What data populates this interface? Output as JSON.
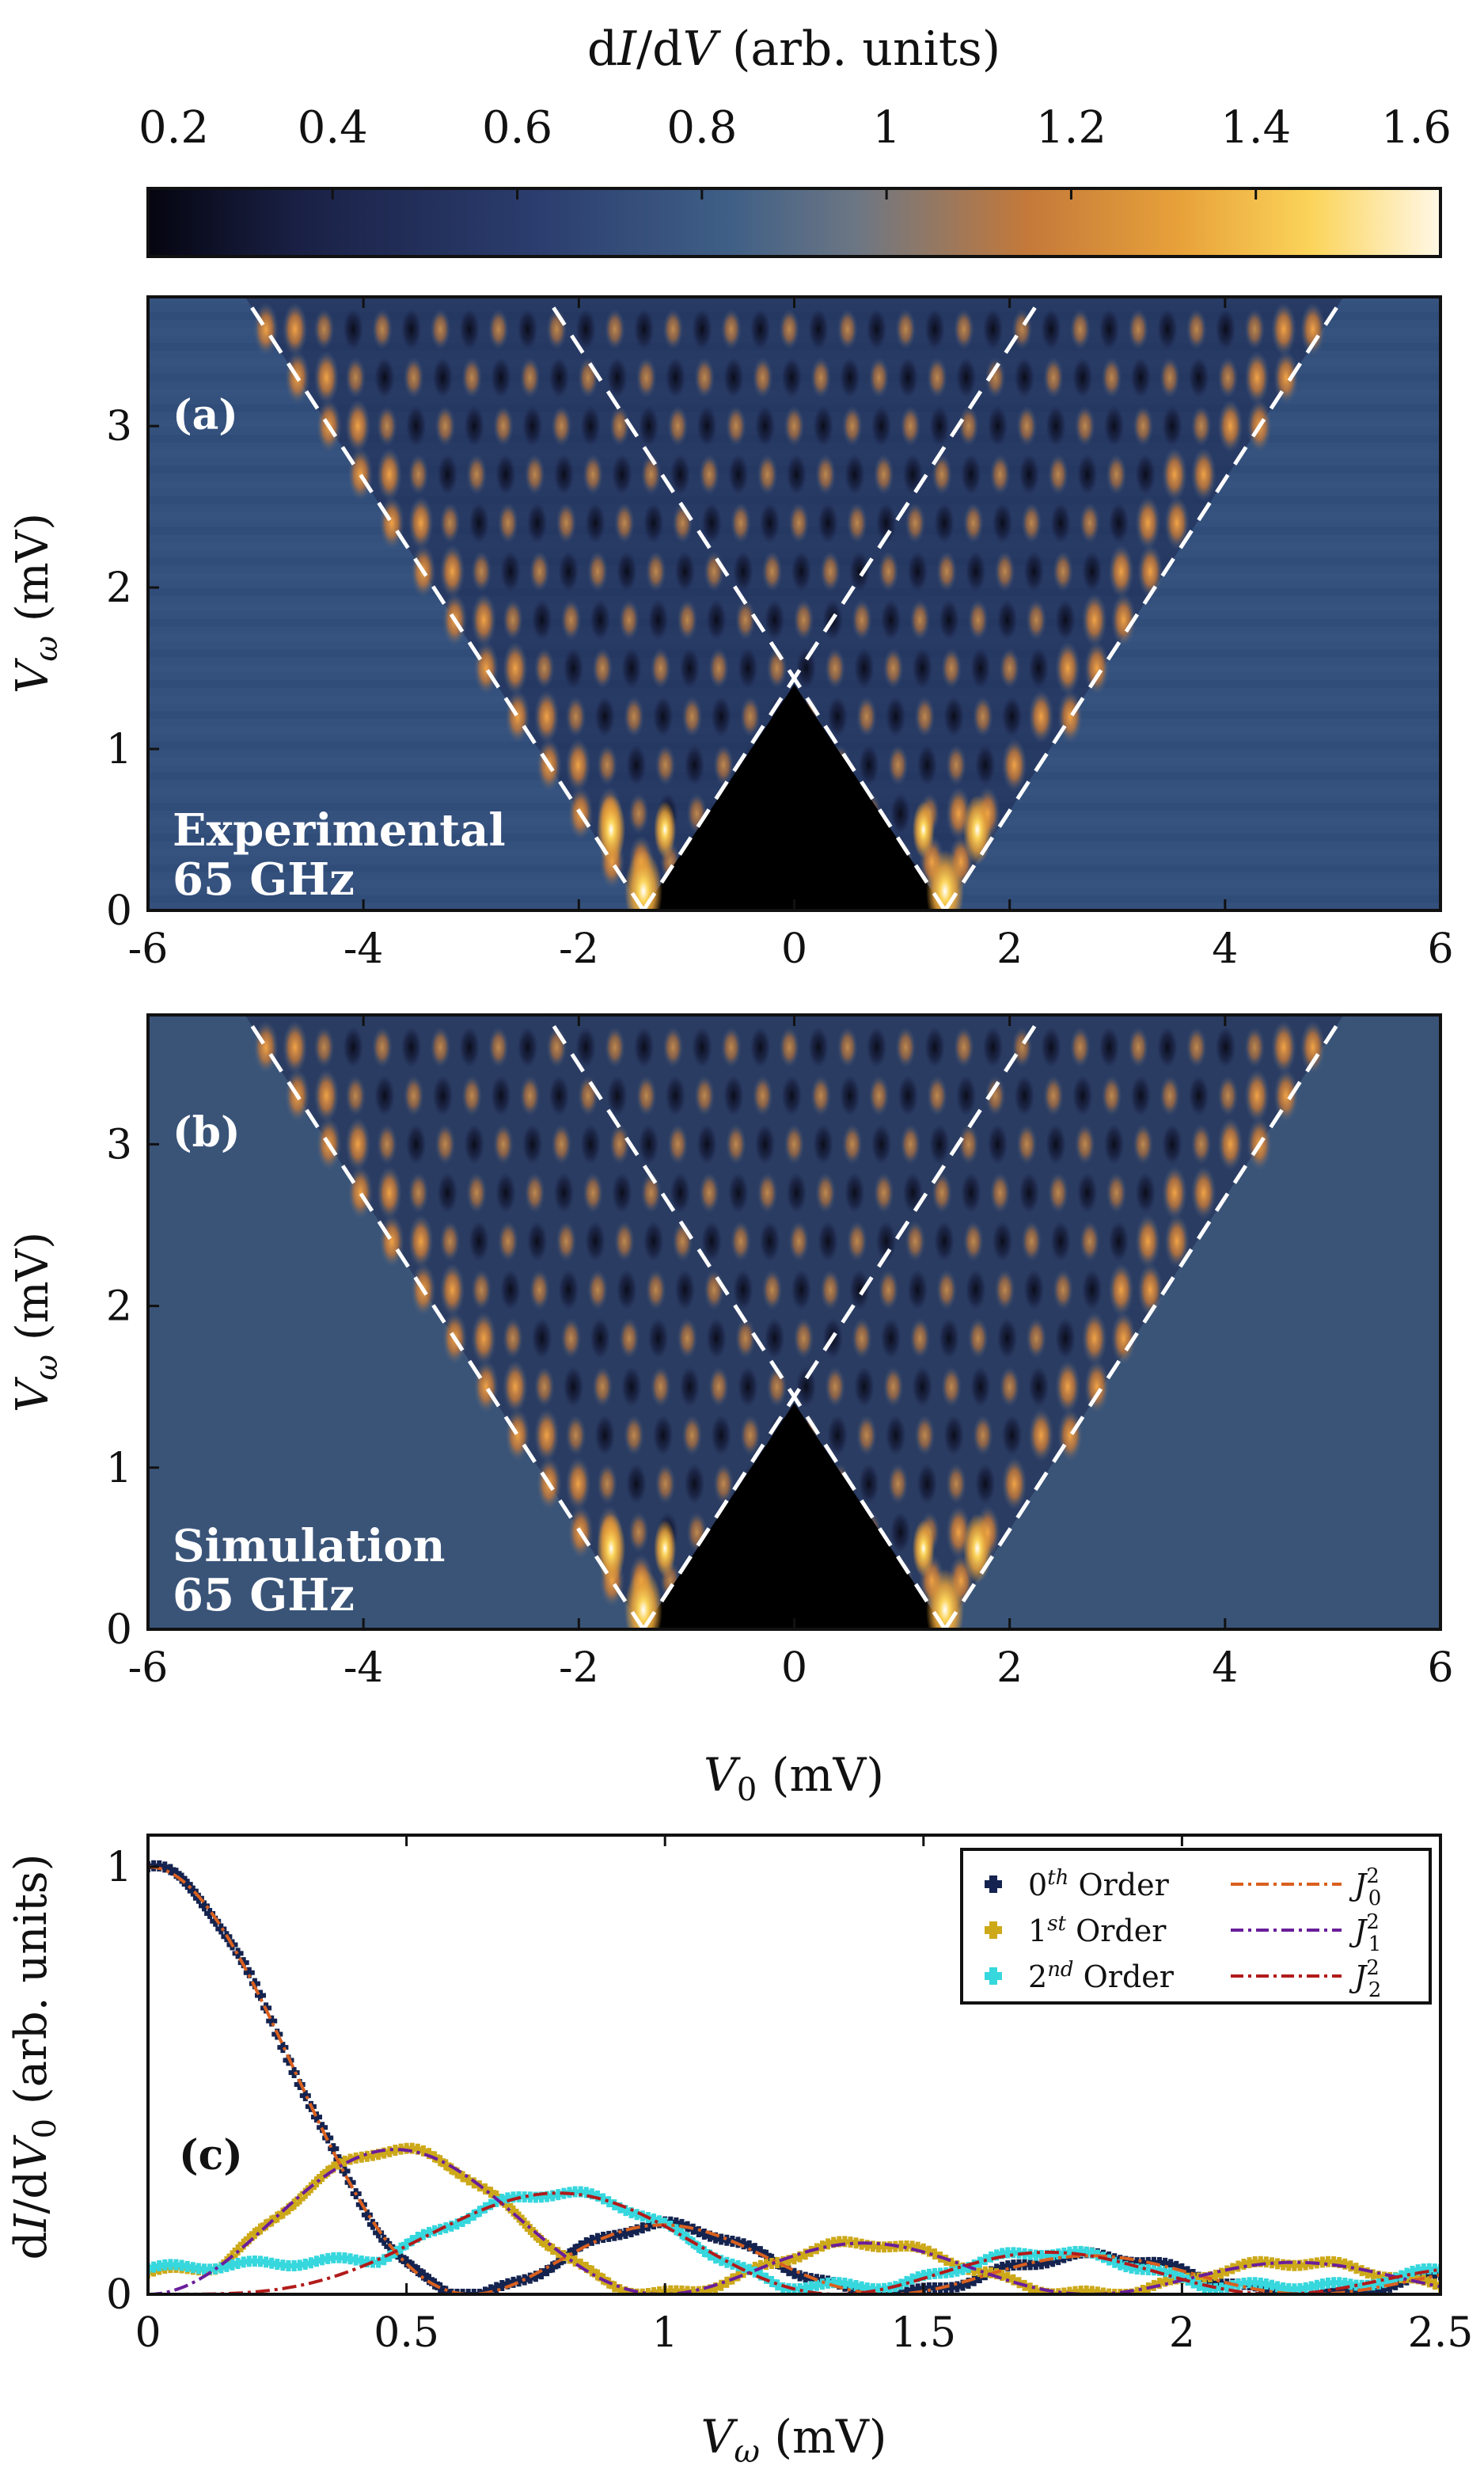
{
  "chart_data": [
    {
      "type": "colorbar",
      "label": "dI/dV (arb. units)",
      "range": [
        0.2,
        1.6
      ],
      "ticks": [
        0.2,
        0.4,
        0.6,
        0.8,
        1,
        1.2,
        1.4,
        1.6
      ],
      "tick_labels": [
        "0.2",
        "0.4",
        "0.6",
        "0.8",
        "1",
        "1.2",
        "1.4",
        "1.6"
      ],
      "colormap": [
        "#050510",
        "#1a2146",
        "#2b3d6e",
        "#3f5f86",
        "#6d7784",
        "#c4793a",
        "#e8a23a",
        "#fbd45a",
        "#fff8e6"
      ]
    },
    {
      "type": "heatmap",
      "panel_label": "(a)",
      "annotation": [
        "Experimental",
        "65 GHz"
      ],
      "xlabel": "V0 (mV)",
      "ylabel": "Vω (mV)",
      "xlim": [
        -6,
        6
      ],
      "ylim": [
        0,
        3.8
      ],
      "xticks": [
        -6,
        -4,
        -2,
        0,
        2,
        4,
        6
      ],
      "xtick_labels": [
        "-6",
        "-4",
        "-2",
        "0",
        "2",
        "4",
        "6"
      ],
      "yticks": [
        0,
        1,
        2,
        3
      ],
      "ytick_labels": [
        "0",
        "1",
        "2",
        "3"
      ],
      "gap_mV": 1.4,
      "dashed_lines": [
        {
          "x": [
            -1.4,
            -5.1
          ],
          "y": [
            0,
            3.8
          ]
        },
        {
          "x": [
            1.4,
            5.1
          ],
          "y": [
            0,
            3.8
          ]
        },
        {
          "x": [
            -1.4,
            2.3
          ],
          "y": [
            0,
            3.8
          ]
        },
        {
          "x": [
            1.4,
            -2.3
          ],
          "y": [
            0,
            3.8
          ]
        }
      ]
    },
    {
      "type": "heatmap",
      "panel_label": "(b)",
      "annotation": [
        "Simulation",
        "65 GHz"
      ],
      "xlabel": "V0 (mV)",
      "ylabel": "Vω (mV)",
      "xlim": [
        -6,
        6
      ],
      "ylim": [
        0,
        3.8
      ],
      "xticks": [
        -6,
        -4,
        -2,
        0,
        2,
        4,
        6
      ],
      "xtick_labels": [
        "-6",
        "-4",
        "-2",
        "0",
        "2",
        "4",
        "6"
      ],
      "yticks": [
        0,
        1,
        2,
        3
      ],
      "ytick_labels": [
        "0",
        "1",
        "2",
        "3"
      ],
      "gap_mV": 1.4,
      "dashed_lines": [
        {
          "x": [
            -1.4,
            -5.1
          ],
          "y": [
            0,
            3.8
          ]
        },
        {
          "x": [
            1.4,
            5.1
          ],
          "y": [
            0,
            3.8
          ]
        },
        {
          "x": [
            -1.4,
            2.3
          ],
          "y": [
            0,
            3.8
          ]
        },
        {
          "x": [
            1.4,
            -2.3
          ],
          "y": [
            0,
            3.8
          ]
        }
      ]
    },
    {
      "type": "scatter+line",
      "panel_label": "(c)",
      "xlabel": "Vω (mV)",
      "ylabel": "dI/dV0 (arb. units)",
      "xlim": [
        0,
        2.5
      ],
      "ylim": [
        0,
        1
      ],
      "xticks": [
        0,
        0.5,
        1,
        1.5,
        2,
        2.5
      ],
      "xtick_labels": [
        "0",
        "0.5",
        "1",
        "1.5",
        "2",
        "2.5"
      ],
      "yticks": [
        0,
        1
      ],
      "ytick_labels": [
        "0",
        "1"
      ],
      "bessel_scale": 3.85,
      "series": [
        {
          "name": "0th Order",
          "kind": "scatter",
          "order": 0,
          "color": "#14234f",
          "offset": 0.0
        },
        {
          "name": "1st Order",
          "kind": "scatter",
          "order": 1,
          "color": "#cda91a",
          "offset": 0.05
        },
        {
          "name": "2nd Order",
          "kind": "scatter",
          "order": 2,
          "color": "#36d7dd",
          "offset": 0.06
        },
        {
          "name": "J0^2",
          "kind": "line",
          "order": 0,
          "color": "#d9601f"
        },
        {
          "name": "J1^2",
          "kind": "line",
          "order": 1,
          "color": "#6a1e9a"
        },
        {
          "name": "J2^2",
          "kind": "line",
          "order": 2,
          "color": "#b21a1a"
        }
      ],
      "legend": [
        {
          "sym": "0",
          "sup": "th",
          "word": "Order",
          "fn": "J",
          "sub": "0",
          "pow": "2"
        },
        {
          "sym": "1",
          "sup": "st",
          "word": "Order",
          "fn": "J",
          "sub": "1",
          "pow": "2"
        },
        {
          "sym": "2",
          "sup": "nd",
          "word": "Order",
          "fn": "J",
          "sub": "2",
          "pow": "2"
        }
      ]
    }
  ]
}
